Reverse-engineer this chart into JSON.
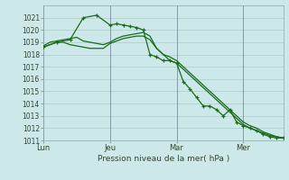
{
  "background_color": "#cce8e8",
  "grid_color": "#aacccc",
  "line_color": "#1a6b1a",
  "ylabel": "Pression niveau de la mer( hPa )",
  "ylim": [
    1011,
    1022
  ],
  "yticks": [
    1011,
    1012,
    1013,
    1014,
    1015,
    1016,
    1017,
    1018,
    1019,
    1020,
    1021
  ],
  "xtick_labels": [
    "Lun",
    "Jeu",
    "Mar",
    "Mer"
  ],
  "xtick_positions": [
    0,
    30,
    60,
    90
  ],
  "vline_positions": [
    0,
    30,
    60,
    90
  ],
  "xlim": [
    0,
    108
  ],
  "series": [
    {
      "x": [
        0,
        3,
        6,
        9,
        12,
        15,
        18,
        21,
        24,
        27,
        30,
        33,
        36,
        39,
        42,
        45,
        48,
        51,
        54,
        57,
        60,
        63,
        66,
        69,
        72,
        75,
        78,
        81,
        84,
        87,
        90,
        93,
        96,
        99,
        102,
        105,
        108
      ],
      "y": [
        1018.7,
        1019.0,
        1019.1,
        1019.2,
        1019.3,
        1019.4,
        1019.1,
        1019.0,
        1018.9,
        1018.8,
        1019.0,
        1019.3,
        1019.5,
        1019.6,
        1019.7,
        1019.8,
        1019.5,
        1018.5,
        1018.0,
        1017.8,
        1017.5,
        1017.0,
        1016.5,
        1016.0,
        1015.5,
        1015.0,
        1014.5,
        1014.0,
        1013.5,
        1013.0,
        1012.5,
        1012.2,
        1012.0,
        1011.7,
        1011.5,
        1011.3,
        1011.2
      ],
      "has_markers": false
    },
    {
      "x": [
        0,
        3,
        6,
        9,
        12,
        15,
        18,
        21,
        24,
        27,
        30,
        33,
        36,
        39,
        42,
        45,
        48,
        51,
        54,
        57,
        60,
        63,
        66,
        69,
        72,
        75,
        78,
        81,
        84,
        87,
        90,
        93,
        96,
        99,
        102,
        105,
        108
      ],
      "y": [
        1018.6,
        1018.8,
        1019.0,
        1019.0,
        1018.8,
        1018.7,
        1018.6,
        1018.5,
        1018.5,
        1018.5,
        1018.9,
        1019.1,
        1019.3,
        1019.4,
        1019.5,
        1019.5,
        1019.2,
        1018.5,
        1018.0,
        1017.5,
        1017.3,
        1016.8,
        1016.3,
        1015.8,
        1015.3,
        1014.8,
        1014.3,
        1013.8,
        1013.3,
        1012.8,
        1012.3,
        1012.0,
        1011.8,
        1011.6,
        1011.4,
        1011.3,
        1011.2
      ],
      "has_markers": false
    },
    {
      "x": [
        0,
        6,
        12,
        18,
        24,
        30,
        33,
        36,
        39,
        42,
        45,
        48,
        51,
        54,
        57,
        60,
        63,
        66,
        69,
        72,
        75,
        78,
        81,
        84,
        87,
        90,
        93,
        96,
        99,
        102,
        105,
        108
      ],
      "y": [
        1018.6,
        1019.0,
        1019.2,
        1021.0,
        1021.2,
        1020.4,
        1020.5,
        1020.4,
        1020.3,
        1020.2,
        1020.0,
        1018.0,
        1017.8,
        1017.5,
        1017.5,
        1017.3,
        1015.8,
        1015.2,
        1014.5,
        1013.8,
        1013.8,
        1013.5,
        1013.0,
        1013.5,
        1012.5,
        1012.2,
        1012.0,
        1011.8,
        1011.5,
        1011.3,
        1011.2,
        1011.2
      ],
      "has_markers": true
    }
  ]
}
